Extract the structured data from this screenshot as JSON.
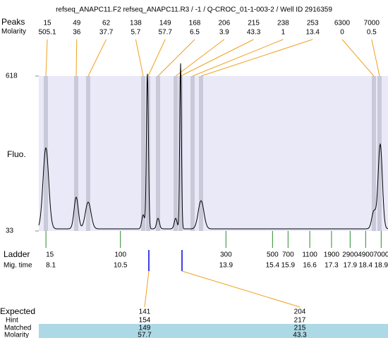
{
  "chart_data": {
    "type": "electropherogram",
    "title": "refseq_ANAPC11.F2  refseq_ANAPC11.R3 / -1 / Q-CROC_01-1-003-2 / Well ID 2916359",
    "ylabel": "Fluo.",
    "ylim": [
      33,
      618
    ],
    "yticks": [
      33,
      618
    ],
    "xlim": [
      7.87,
      19.12
    ],
    "peaks": {
      "size_label": "Peaks",
      "molarity_label": "Molarity",
      "sizes": [
        15,
        49,
        62,
        138,
        149,
        168,
        206,
        215,
        238,
        253,
        6300,
        7000
      ],
      "molarity": [
        505.1,
        36,
        37.7,
        5.7,
        57.7,
        6.5,
        3.9,
        43.3,
        1,
        13.4,
        0,
        0.5
      ]
    },
    "ladder": {
      "label": "Ladder",
      "time_label": "Mig. time",
      "sizes": [
        15,
        100,
        300,
        500,
        700,
        1100,
        1900,
        2900,
        4900,
        7000
      ],
      "mig_times": [
        8.1,
        10.5,
        13.9,
        15.4,
        15.9,
        16.6,
        17.3,
        17.9,
        18.4,
        18.9
      ]
    },
    "expected": {
      "labels": [
        "Expected",
        "Hint",
        "Matched",
        "Molarity"
      ],
      "expected": [
        141,
        204
      ],
      "hint": [
        154,
        217
      ],
      "matched": [
        149,
        215
      ],
      "molarity": [
        57.7,
        43.3
      ]
    }
  }
}
